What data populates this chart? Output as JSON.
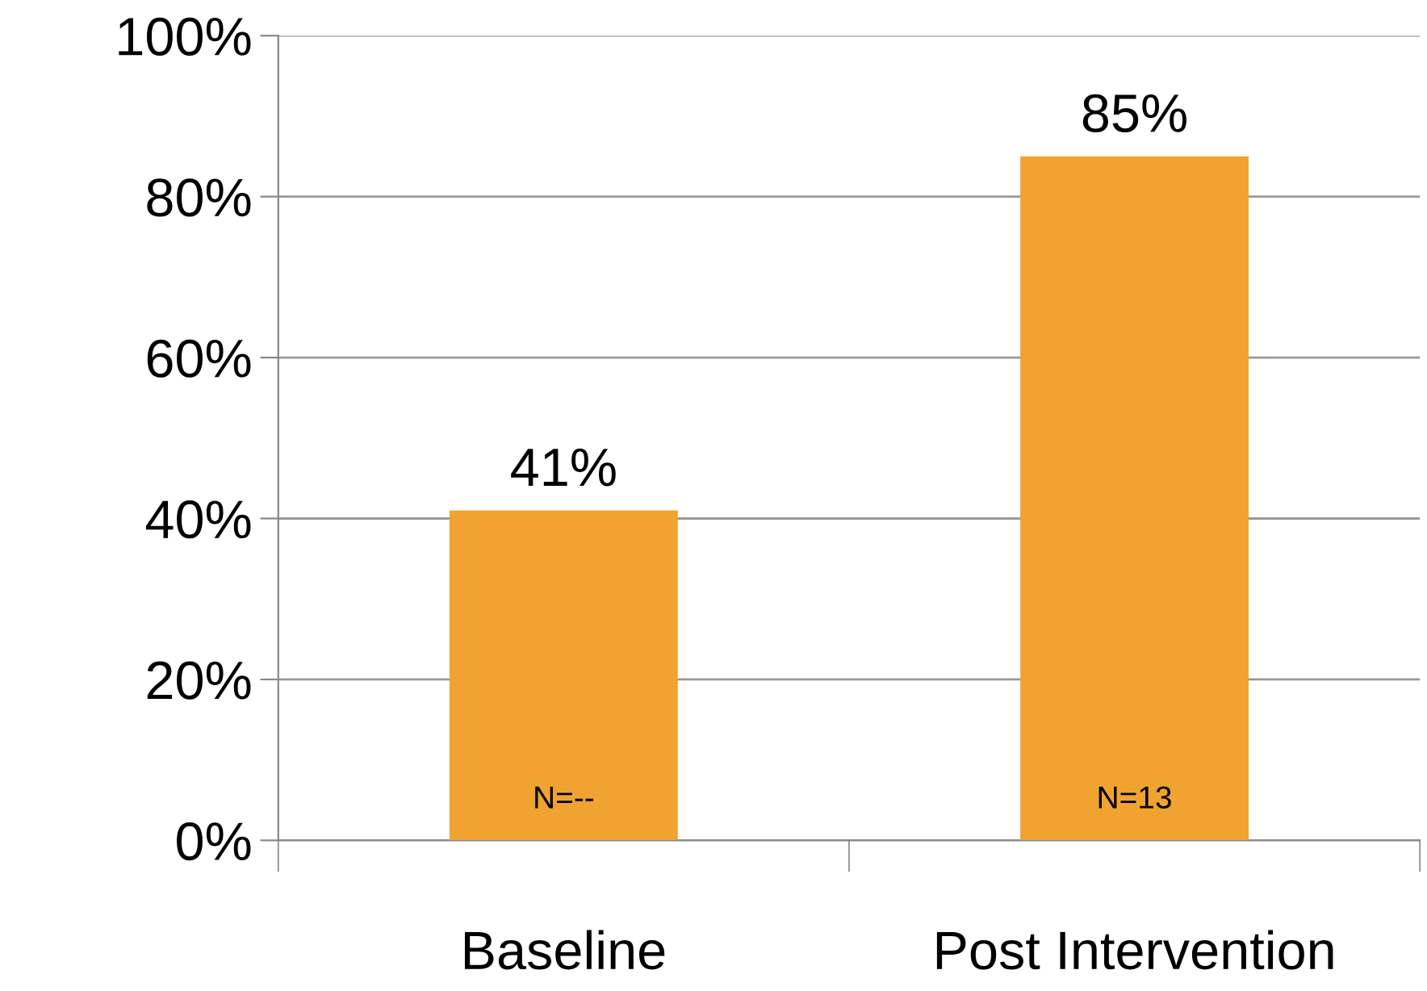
{
  "chart_data": {
    "type": "bar",
    "categories": [
      "Baseline",
      "Post Intervention"
    ],
    "values": [
      41,
      85
    ],
    "value_labels": [
      "41%",
      "85%"
    ],
    "color": "#f0a330",
    "ylim": [
      0,
      100
    ],
    "yticks": [
      {
        "value": 0,
        "label": "0%"
      },
      {
        "value": 20,
        "label": "20%"
      },
      {
        "value": 40,
        "label": "40%"
      },
      {
        "value": 60,
        "label": "60%"
      },
      {
        "value": 80,
        "label": "80%"
      },
      {
        "value": 100,
        "label": "100%"
      }
    ],
    "grid": "y",
    "annotations": [
      "N=--",
      "N=13"
    ]
  }
}
